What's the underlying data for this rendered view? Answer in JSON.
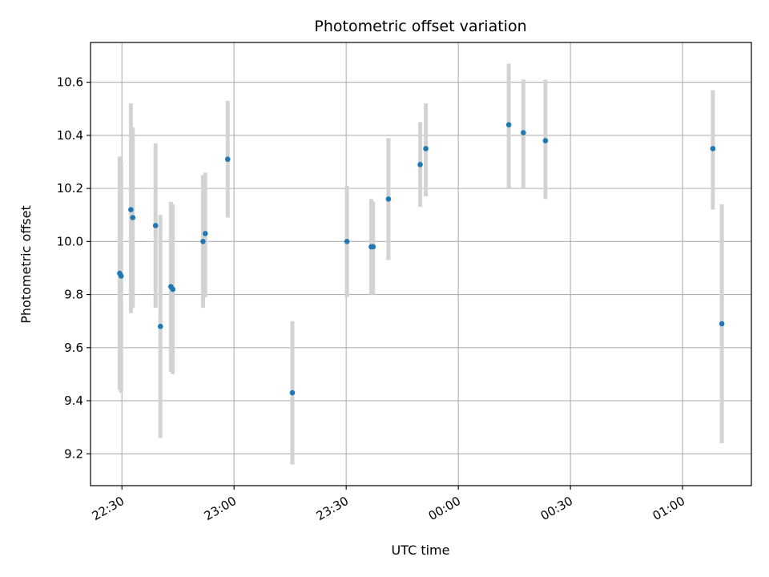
{
  "chart_data": {
    "type": "scatter",
    "title": "Photometric offset variation",
    "xlabel": "UTC time",
    "ylabel": "Photometric offset",
    "x_tick_labels": [
      "22:30",
      "23:00",
      "23:30",
      "00:00",
      "00:30",
      "01:00"
    ],
    "x_tick_minutes": [
      0,
      30,
      60,
      90,
      120,
      150
    ],
    "xlim_minutes": [
      -8.4,
      168.4
    ],
    "ylim": [
      9.08,
      10.75
    ],
    "y_ticks": [
      9.2,
      9.4,
      9.6,
      9.8,
      10.0,
      10.2,
      10.4,
      10.6
    ],
    "y_tick_labels": [
      "9.2",
      "9.4",
      "9.6",
      "9.8",
      "10.0",
      "10.2",
      "10.4",
      "10.6"
    ],
    "grid": true,
    "colors": {
      "point": "#1f77b4",
      "errorbar": "#d3d3d3",
      "grid": "#b0b0b0"
    },
    "points": [
      {
        "t": -0.6,
        "y": 9.88,
        "lo": 9.44,
        "hi": 10.32
      },
      {
        "t": -0.2,
        "y": 9.87,
        "lo": 9.43,
        "hi": 10.3
      },
      {
        "t": 2.4,
        "y": 10.12,
        "lo": 9.73,
        "hi": 10.52
      },
      {
        "t": 2.9,
        "y": 10.09,
        "lo": 9.75,
        "hi": 10.43
      },
      {
        "t": 9.0,
        "y": 10.06,
        "lo": 9.75,
        "hi": 10.37
      },
      {
        "t": 10.3,
        "y": 9.68,
        "lo": 9.26,
        "hi": 10.1
      },
      {
        "t": 13.1,
        "y": 9.83,
        "lo": 9.51,
        "hi": 10.15
      },
      {
        "t": 13.6,
        "y": 9.82,
        "lo": 9.5,
        "hi": 10.14
      },
      {
        "t": 21.7,
        "y": 10.0,
        "lo": 9.75,
        "hi": 10.25
      },
      {
        "t": 22.3,
        "y": 10.03,
        "lo": 9.79,
        "hi": 10.26
      },
      {
        "t": 28.3,
        "y": 10.31,
        "lo": 10.09,
        "hi": 10.53
      },
      {
        "t": 45.6,
        "y": 9.43,
        "lo": 9.16,
        "hi": 9.7
      },
      {
        "t": 60.2,
        "y": 10.0,
        "lo": 9.79,
        "hi": 10.21
      },
      {
        "t": 66.7,
        "y": 9.98,
        "lo": 9.8,
        "hi": 10.16
      },
      {
        "t": 67.2,
        "y": 9.98,
        "lo": 9.8,
        "hi": 10.15
      },
      {
        "t": 71.3,
        "y": 10.16,
        "lo": 9.93,
        "hi": 10.39
      },
      {
        "t": 79.8,
        "y": 10.29,
        "lo": 10.13,
        "hi": 10.45
      },
      {
        "t": 81.3,
        "y": 10.35,
        "lo": 10.17,
        "hi": 10.52
      },
      {
        "t": 103.5,
        "y": 10.44,
        "lo": 10.2,
        "hi": 10.67
      },
      {
        "t": 107.4,
        "y": 10.41,
        "lo": 10.2,
        "hi": 10.61
      },
      {
        "t": 113.3,
        "y": 10.38,
        "lo": 10.16,
        "hi": 10.61
      },
      {
        "t": 158.1,
        "y": 10.35,
        "lo": 10.12,
        "hi": 10.57
      },
      {
        "t": 160.5,
        "y": 9.69,
        "lo": 9.24,
        "hi": 10.14
      }
    ]
  }
}
